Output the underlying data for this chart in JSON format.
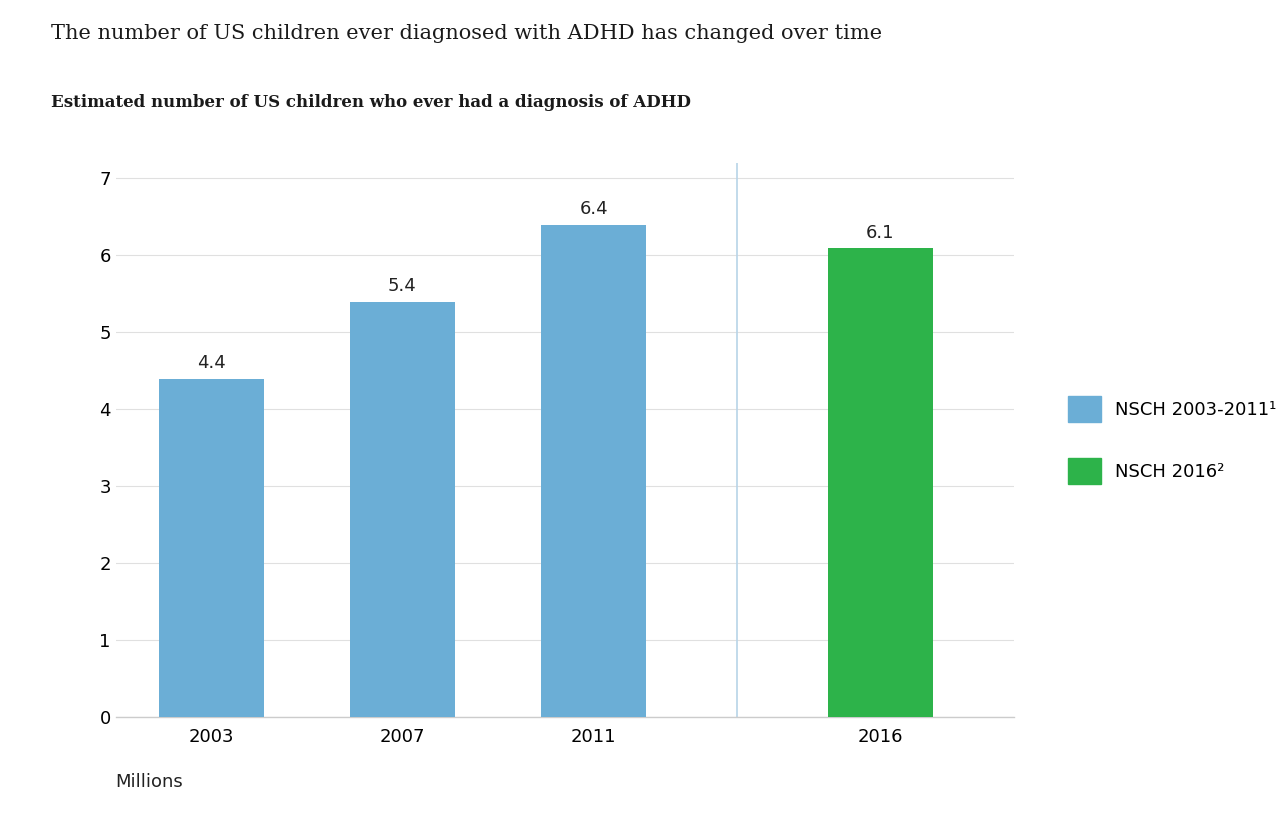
{
  "title": "The number of US children ever diagnosed with ADHD has changed over time",
  "subtitle": "Estimated number of US children who ever had a diagnosis of ADHD",
  "categories": [
    "2003",
    "2007",
    "2011",
    "2016"
  ],
  "values": [
    4.4,
    5.4,
    6.4,
    6.1
  ],
  "bar_colors": [
    "#6baed6",
    "#6baed6",
    "#6baed6",
    "#2db34a"
  ],
  "blue_color": "#6baed6",
  "green_color": "#2db34a",
  "ylim": [
    0,
    7.2
  ],
  "yticks": [
    0,
    1,
    2,
    3,
    4,
    5,
    6,
    7
  ],
  "legend_labels": [
    "NSCH 2003-2011¹",
    "NSCH 2016²"
  ],
  "title_fontsize": 15,
  "subtitle_fontsize": 12,
  "tick_fontsize": 13,
  "value_label_fontsize": 13,
  "background_color": "#ffffff",
  "separator_color": "#b8d4e8",
  "spine_color": "#cccccc",
  "grid_color": "#e0e0e0"
}
